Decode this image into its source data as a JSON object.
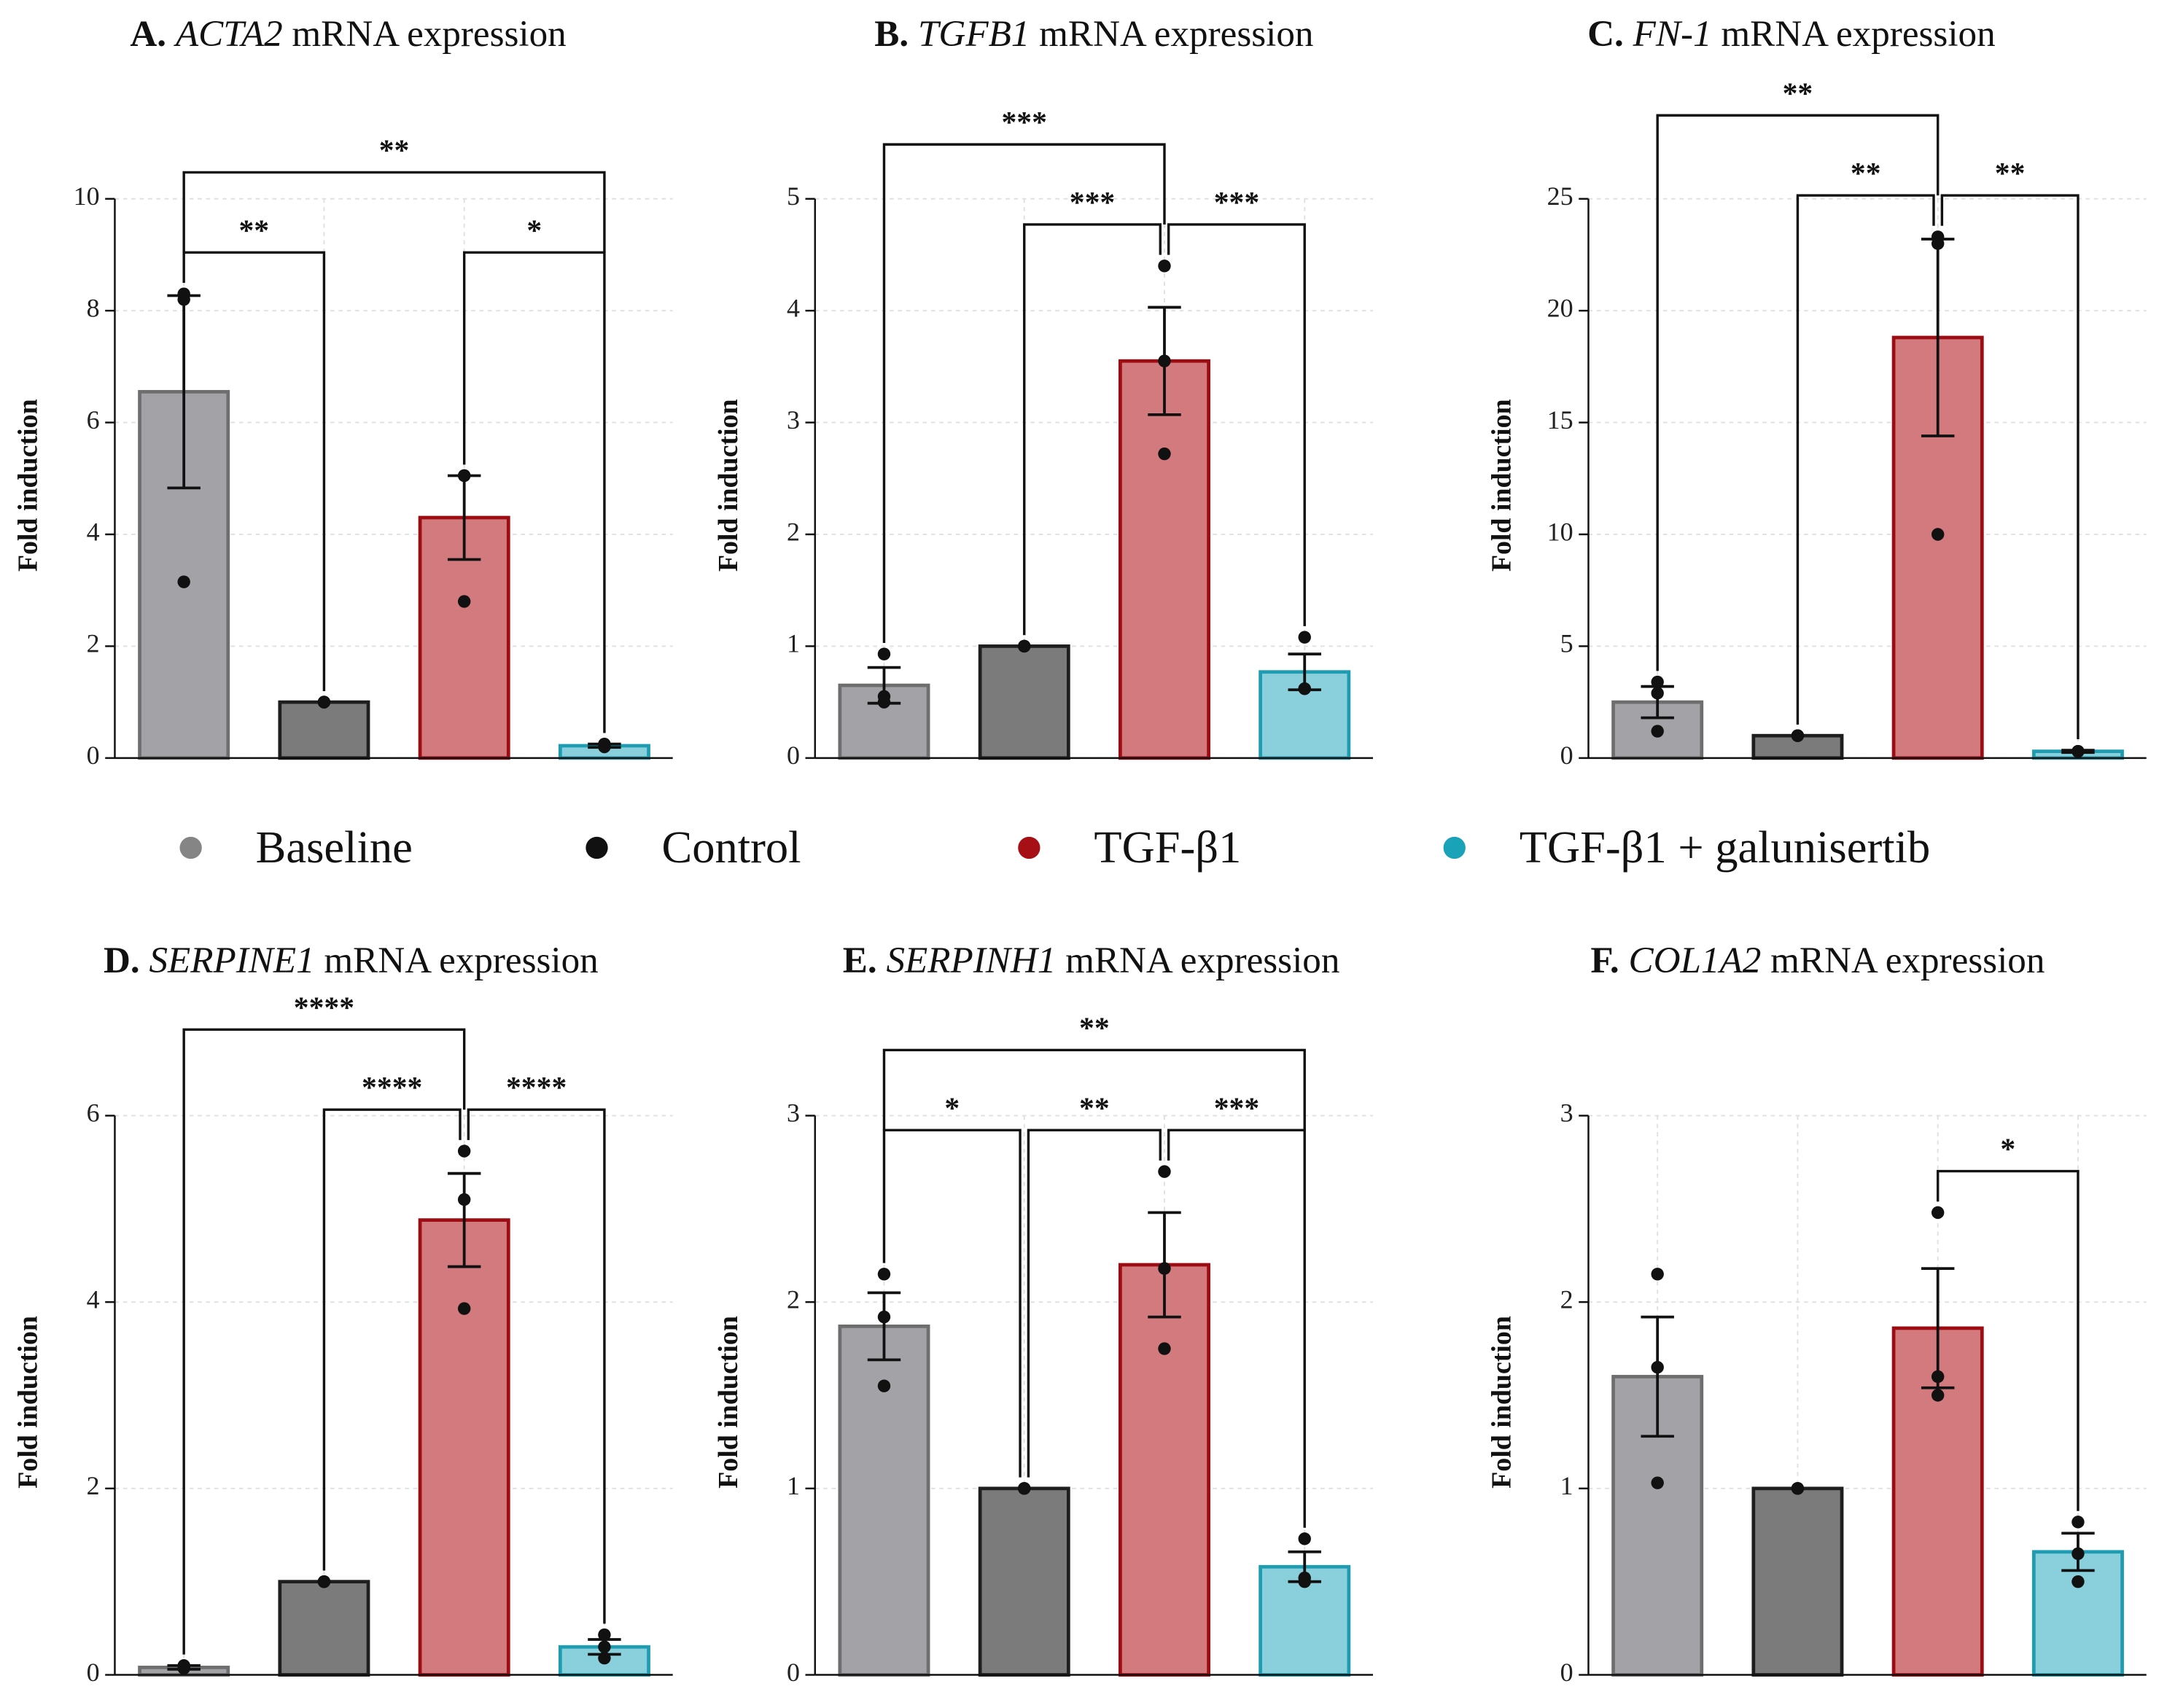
{
  "legend": [
    {
      "name": "Baseline",
      "color": "#858585",
      "fill": "#a3a3a7",
      "edge": "#6e6e6e"
    },
    {
      "name": "Control",
      "color": "#111111",
      "fill": "#7b7b7b",
      "edge": "#1e1e1e"
    },
    {
      "name": "TGF-β1",
      "color": "#a50f15",
      "fill": "#d27a7e",
      "edge": "#9c0c12"
    },
    {
      "name": "TGF-β1 + galunisertib",
      "color": "#1aa2b8",
      "fill": "#8ad0dc",
      "edge": "#1d9cb2"
    }
  ],
  "chart_data": [
    {
      "type": "bar",
      "title_prefix": "A.",
      "title_gene": "ACTA2",
      "title_suffix": "mRNA expression",
      "ylabel": "Fold induction",
      "grid": true,
      "values": [
        6.55,
        1.0,
        4.3,
        0.22
      ],
      "errors": [
        1.72,
        0,
        0.75,
        0.03
      ],
      "points": [
        [
          8.3,
          3.15,
          8.2
        ],
        [
          1,
          1,
          1
        ],
        [
          5.05,
          2.8,
          5.05
        ],
        [
          0.22,
          0.25,
          0.2
        ]
      ],
      "ylim": [
        0,
        10
      ],
      "yticks": [
        0,
        2,
        4,
        6,
        8,
        10
      ],
      "significance": [
        {
          "from": 0,
          "to": 1,
          "label": "**"
        },
        {
          "from": 2,
          "to": 3,
          "label": "*"
        },
        {
          "from": 0,
          "to": 3,
          "label": "**"
        }
      ]
    },
    {
      "type": "bar",
      "title_prefix": "B.",
      "title_gene": "TGFB1",
      "title_suffix": "mRNA expression",
      "ylabel": "Fold induction",
      "grid": true,
      "values": [
        0.65,
        1.0,
        3.55,
        0.77
      ],
      "errors": [
        0.16,
        0,
        0.48,
        0.16
      ],
      "points": [
        [
          0.93,
          0.5,
          0.55
        ],
        [
          1,
          1,
          1
        ],
        [
          4.4,
          3.55,
          2.72
        ],
        [
          1.08,
          0.62,
          0.62
        ]
      ],
      "ylim": [
        0,
        5
      ],
      "yticks": [
        0,
        1,
        2,
        3,
        4,
        5
      ],
      "significance": [
        {
          "from": 1,
          "to": 2,
          "label": "***"
        },
        {
          "from": 2,
          "to": 3,
          "label": "***"
        },
        {
          "from": 0,
          "to": 2,
          "label": "***"
        }
      ]
    },
    {
      "type": "bar",
      "title_prefix": "C.",
      "title_gene": "FN-1",
      "title_suffix": "mRNA expression",
      "ylabel": "Fold induction",
      "grid": true,
      "values": [
        2.5,
        1.0,
        18.8,
        0.3
      ],
      "errors": [
        0.7,
        0,
        4.4,
        0.05
      ],
      "points": [
        [
          3.4,
          2.9,
          1.2
        ],
        [
          1,
          1,
          1
        ],
        [
          23.3,
          23.0,
          10.0
        ],
        [
          0.3,
          0.3,
          0.3
        ]
      ],
      "ylim": [
        0,
        25
      ],
      "yticks": [
        0,
        5,
        10,
        15,
        20,
        25
      ],
      "significance": [
        {
          "from": 1,
          "to": 2,
          "label": "**"
        },
        {
          "from": 2,
          "to": 3,
          "label": "**"
        },
        {
          "from": 0,
          "to": 2,
          "label": "**"
        }
      ]
    },
    {
      "type": "bar",
      "title_prefix": "D.",
      "title_gene": "SERPINE1",
      "title_suffix": "mRNA expression",
      "ylabel": "Fold induction",
      "grid": true,
      "values": [
        0.08,
        1.0,
        4.88,
        0.3
      ],
      "errors": [
        0.02,
        0,
        0.5,
        0.08
      ],
      "points": [
        [
          0.1,
          0.08,
          0.07
        ],
        [
          1,
          1,
          1
        ],
        [
          5.62,
          5.1,
          3.93
        ],
        [
          0.43,
          0.3,
          0.18
        ]
      ],
      "ylim": [
        0,
        6
      ],
      "yticks": [
        0,
        2,
        4,
        6
      ],
      "significance": [
        {
          "from": 1,
          "to": 2,
          "label": "****"
        },
        {
          "from": 2,
          "to": 3,
          "label": "****"
        },
        {
          "from": 0,
          "to": 2,
          "label": "****"
        }
      ]
    },
    {
      "type": "bar",
      "title_prefix": "E.",
      "title_gene": "SERPINH1",
      "title_suffix": "mRNA expression",
      "ylabel": "Fold induction",
      "grid": true,
      "values": [
        1.87,
        1.0,
        2.2,
        0.58
      ],
      "errors": [
        0.18,
        0,
        0.28,
        0.08
      ],
      "points": [
        [
          2.15,
          1.92,
          1.55
        ],
        [
          1,
          1,
          1
        ],
        [
          2.7,
          2.18,
          1.75
        ],
        [
          0.73,
          0.52,
          0.5
        ]
      ],
      "ylim": [
        0,
        3
      ],
      "yticks": [
        0,
        1,
        2,
        3
      ],
      "significance": [
        {
          "from": 0,
          "to": 1,
          "label": "*"
        },
        {
          "from": 1,
          "to": 2,
          "label": "**"
        },
        {
          "from": 2,
          "to": 3,
          "label": "***"
        },
        {
          "from": 0,
          "to": 3,
          "label": "**"
        }
      ]
    },
    {
      "type": "bar",
      "title_prefix": "F.",
      "title_gene": "COL1A2",
      "title_suffix": "mRNA expression",
      "ylabel": "Fold induction",
      "grid": true,
      "values": [
        1.6,
        1.0,
        1.86,
        0.66
      ],
      "errors": [
        0.32,
        0,
        0.32,
        0.1
      ],
      "points": [
        [
          2.15,
          1.65,
          1.03
        ],
        [
          1,
          1,
          1
        ],
        [
          2.48,
          1.6,
          1.5
        ],
        [
          0.82,
          0.65,
          0.5
        ]
      ],
      "ylim": [
        0,
        3
      ],
      "yticks": [
        0,
        1,
        2,
        3
      ],
      "significance": [
        {
          "from": 2,
          "to": 3,
          "label": "*"
        }
      ]
    }
  ]
}
